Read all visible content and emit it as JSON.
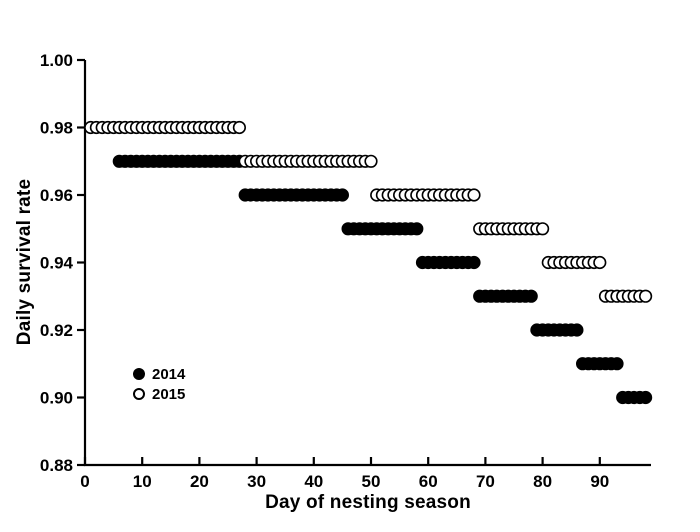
{
  "colors": {
    "foreground": "#000000",
    "background": "#ffffff",
    "open_marker_fill": "#ffffff",
    "filled_marker_fill": "#000000"
  },
  "legend": {
    "position": "inside-lower-left"
  },
  "chart_data": {
    "type": "scatter",
    "title": "",
    "xlabel": "Day of nesting season",
    "ylabel": "Daily survival rate",
    "xlim": [
      0,
      98
    ],
    "ylim": [
      0.88,
      1.0
    ],
    "x_ticks": [
      "0",
      "10",
      "20",
      "30",
      "40",
      "50",
      "60",
      "70",
      "80",
      "90"
    ],
    "y_ticks": [
      "1.00",
      "0.98",
      "0.96",
      "0.94",
      "0.92",
      "0.90",
      "0.88"
    ],
    "grid": false,
    "legend_position": "inside-lower-left",
    "series": [
      {
        "name": "2014",
        "marker": "filled-circle",
        "stroke": "#000000",
        "fill": "#000000",
        "steps": [
          {
            "rate": 0.97,
            "day_start": 6,
            "day_end": 27
          },
          {
            "rate": 0.96,
            "day_start": 28,
            "day_end": 45
          },
          {
            "rate": 0.95,
            "day_start": 46,
            "day_end": 58
          },
          {
            "rate": 0.94,
            "day_start": 59,
            "day_end": 68
          },
          {
            "rate": 0.93,
            "day_start": 69,
            "day_end": 78
          },
          {
            "rate": 0.92,
            "day_start": 79,
            "day_end": 86
          },
          {
            "rate": 0.91,
            "day_start": 87,
            "day_end": 93
          },
          {
            "rate": 0.9,
            "day_start": 94,
            "day_end": 98
          }
        ]
      },
      {
        "name": "2015",
        "marker": "open-circle",
        "stroke": "#000000",
        "fill": "#ffffff",
        "steps": [
          {
            "rate": 0.98,
            "day_start": 1,
            "day_end": 27
          },
          {
            "rate": 0.97,
            "day_start": 28,
            "day_end": 50
          },
          {
            "rate": 0.96,
            "day_start": 51,
            "day_end": 68
          },
          {
            "rate": 0.95,
            "day_start": 69,
            "day_end": 80
          },
          {
            "rate": 0.94,
            "day_start": 81,
            "day_end": 90
          },
          {
            "rate": 0.93,
            "day_start": 91,
            "day_end": 98
          }
        ]
      }
    ]
  }
}
